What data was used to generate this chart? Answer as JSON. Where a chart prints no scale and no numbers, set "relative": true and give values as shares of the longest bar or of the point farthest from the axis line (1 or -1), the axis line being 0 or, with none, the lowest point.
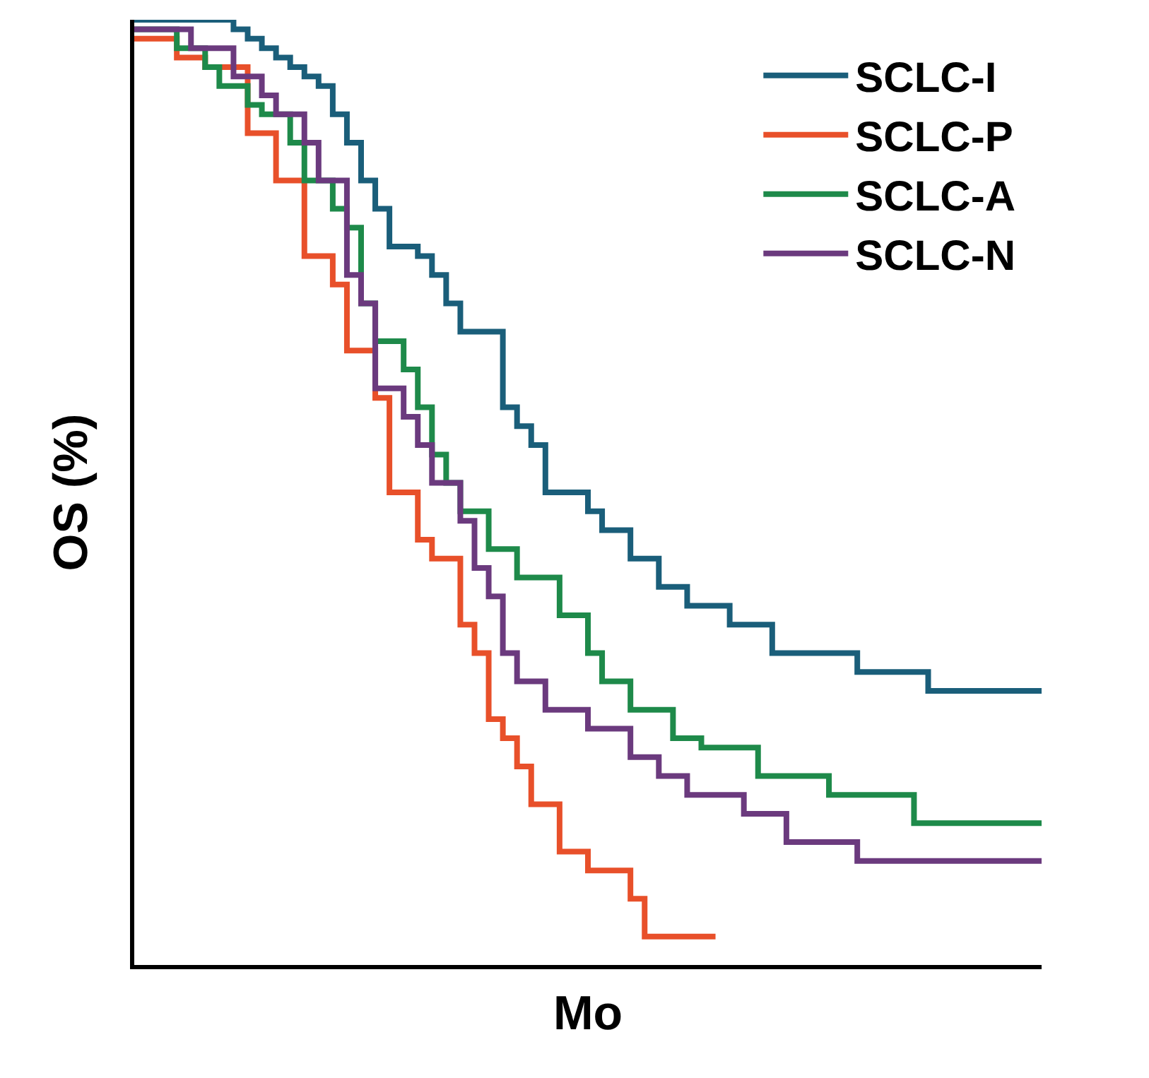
{
  "chart_data": {
    "type": "step",
    "relative": true,
    "xlabel": "Mo",
    "ylabel": "OS (%)",
    "legend": "top right",
    "tick_labels": false,
    "marker": "none",
    "line_style": "solid",
    "categories": [
      null,
      null,
      null,
      null,
      null,
      null,
      null,
      null,
      null,
      null,
      null,
      null,
      null,
      null,
      null,
      null,
      null,
      null,
      null,
      null,
      null,
      null,
      null,
      null,
      null,
      null,
      null,
      null,
      null,
      null,
      null,
      null,
      null,
      null,
      null,
      null,
      null,
      null,
      null,
      null,
      null,
      null,
      null,
      null,
      null,
      null,
      null,
      null,
      null,
      null,
      null,
      null,
      null,
      null,
      null,
      null,
      null,
      null,
      null,
      null,
      null,
      null,
      null,
      null,
      null
    ],
    "series": [
      {
        "name": "SCLC-I",
        "color": "#1a5e7a",
        "values": [
          1.0,
          1.0,
          1.0,
          1.0,
          1.0,
          1.0,
          1.0,
          0.99,
          0.98,
          0.97,
          0.96,
          0.95,
          0.94,
          0.93,
          0.9,
          0.87,
          0.83,
          0.8,
          0.76,
          0.76,
          0.75,
          0.73,
          0.7,
          0.67,
          0.67,
          0.67,
          0.59,
          0.57,
          0.55,
          0.5,
          0.5,
          0.5,
          0.48,
          0.46,
          0.46,
          0.43,
          0.43,
          0.4,
          0.4,
          0.38,
          0.38,
          0.38,
          0.36,
          0.36,
          0.36,
          0.33,
          0.33,
          0.33,
          0.33,
          0.33,
          0.33,
          0.31,
          0.31,
          0.31,
          0.31,
          0.31,
          0.29,
          0.29,
          0.29,
          0.29,
          0.29,
          0.29,
          0.29,
          0.29,
          0.29
        ]
      },
      {
        "name": "SCLC-P",
        "color": "#e8502a",
        "values": [
          0.98,
          0.98,
          0.98,
          0.96,
          0.96,
          0.95,
          0.95,
          0.95,
          0.88,
          0.88,
          0.83,
          0.83,
          0.75,
          0.75,
          0.72,
          0.65,
          0.65,
          0.6,
          0.5,
          0.5,
          0.45,
          0.43,
          0.43,
          0.36,
          0.33,
          0.26,
          0.24,
          0.21,
          0.17,
          0.17,
          0.12,
          0.12,
          0.1,
          0.1,
          0.1,
          0.07,
          0.03,
          0.03,
          0.03,
          0.03,
          0.03,
          0.03,
          null,
          null,
          null,
          null,
          null,
          null,
          null,
          null,
          null,
          null,
          null,
          null,
          null,
          null,
          null,
          null,
          null,
          null,
          null,
          null,
          null,
          null,
          null
        ]
      },
      {
        "name": "SCLC-A",
        "color": "#1e8a4a",
        "values": [
          0.99,
          0.99,
          0.99,
          0.97,
          0.97,
          0.95,
          0.93,
          0.93,
          0.91,
          0.9,
          0.9,
          0.87,
          0.83,
          0.83,
          0.8,
          0.78,
          0.7,
          0.66,
          0.66,
          0.63,
          0.59,
          0.54,
          0.51,
          0.48,
          0.48,
          0.44,
          0.44,
          0.41,
          0.41,
          0.41,
          0.37,
          0.37,
          0.33,
          0.3,
          0.3,
          0.27,
          0.27,
          0.27,
          0.24,
          0.24,
          0.23,
          0.23,
          0.23,
          0.23,
          0.2,
          0.2,
          0.2,
          0.2,
          0.2,
          0.18,
          0.18,
          0.18,
          0.18,
          0.18,
          0.18,
          0.15,
          0.15,
          0.15,
          0.15,
          0.15,
          0.15,
          0.15,
          0.15,
          0.15,
          0.15
        ]
      },
      {
        "name": "SCLC-N",
        "color": "#6b3a7e",
        "values": [
          0.99,
          0.99,
          0.99,
          0.99,
          0.97,
          0.97,
          0.97,
          0.94,
          0.94,
          0.92,
          0.9,
          0.9,
          0.87,
          0.83,
          0.83,
          0.73,
          0.7,
          0.61,
          0.61,
          0.58,
          0.55,
          0.51,
          0.51,
          0.47,
          0.42,
          0.39,
          0.33,
          0.3,
          0.3,
          0.27,
          0.27,
          0.27,
          0.25,
          0.25,
          0.25,
          0.22,
          0.22,
          0.2,
          0.2,
          0.18,
          0.18,
          0.18,
          0.18,
          0.16,
          0.16,
          0.16,
          0.13,
          0.13,
          0.13,
          0.13,
          0.13,
          0.11,
          0.11,
          0.11,
          0.11,
          0.11,
          0.11,
          0.11,
          0.11,
          0.11,
          0.11,
          0.11,
          0.11,
          0.11,
          0.11
        ]
      }
    ]
  }
}
